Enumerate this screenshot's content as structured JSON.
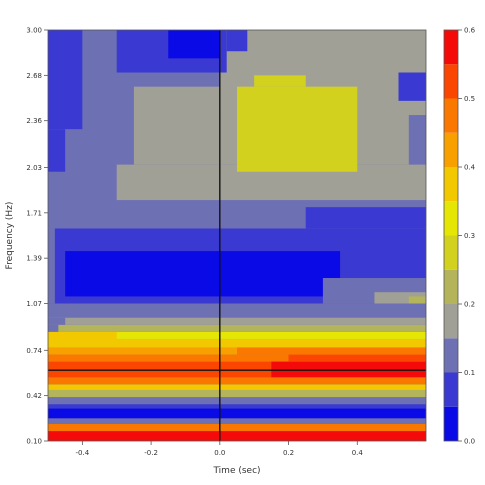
{
  "chart_data": {
    "type": "heatmap",
    "title": "",
    "xlabel": "Time (sec)",
    "ylabel": "Frequency (Hz)",
    "xlim": [
      -0.5,
      0.6
    ],
    "ylim": [
      0.1,
      3.0
    ],
    "x_ticks": [
      {
        "value": -0.4,
        "label": "-0.4"
      },
      {
        "value": -0.2,
        "label": "-0.2"
      },
      {
        "value": 0.0,
        "label": "0.0"
      },
      {
        "value": 0.2,
        "label": "0.2"
      },
      {
        "value": 0.4,
        "label": "0.4"
      }
    ],
    "y_ticks": [
      {
        "value": 0.1,
        "label": "0.10"
      },
      {
        "value": 0.42,
        "label": "0.42"
      },
      {
        "value": 0.74,
        "label": "0.74"
      },
      {
        "value": 1.07,
        "label": "1.07"
      },
      {
        "value": 1.39,
        "label": "1.39"
      },
      {
        "value": 1.71,
        "label": "1.71"
      },
      {
        "value": 2.03,
        "label": "2.03"
      },
      {
        "value": 2.36,
        "label": "2.36"
      },
      {
        "value": 2.68,
        "label": "2.68"
      },
      {
        "value": 3.0,
        "label": "3.00"
      }
    ],
    "colorbar": {
      "range": [
        0,
        0.6
      ],
      "ticks": [
        {
          "value": 0.0,
          "label": "0.0"
        },
        {
          "value": 0.1,
          "label": "0.1"
        },
        {
          "value": 0.2,
          "label": "0.2"
        },
        {
          "value": 0.3,
          "label": "0.3"
        },
        {
          "value": 0.4,
          "label": "0.4"
        },
        {
          "value": 0.5,
          "label": "0.5"
        },
        {
          "value": 0.6,
          "label": "0.6"
        }
      ],
      "levels": [
        {
          "min": 0.0,
          "max": 0.05,
          "color": "#0a0ae6"
        },
        {
          "min": 0.05,
          "max": 0.1,
          "color": "#3a3ad2"
        },
        {
          "min": 0.1,
          "max": 0.15,
          "color": "#6e70b4"
        },
        {
          "min": 0.15,
          "max": 0.2,
          "color": "#a0a096"
        },
        {
          "min": 0.2,
          "max": 0.25,
          "color": "#b4b45a"
        },
        {
          "min": 0.25,
          "max": 0.3,
          "color": "#d2d21e"
        },
        {
          "min": 0.3,
          "max": 0.35,
          "color": "#e6e605"
        },
        {
          "min": 0.35,
          "max": 0.4,
          "color": "#f2c800"
        },
        {
          "min": 0.4,
          "max": 0.45,
          "color": "#f7a000"
        },
        {
          "min": 0.45,
          "max": 0.5,
          "color": "#fa7800"
        },
        {
          "min": 0.5,
          "max": 0.55,
          "color": "#fa4600"
        },
        {
          "min": 0.55,
          "max": 0.6,
          "color": "#f50a0a"
        }
      ]
    },
    "reference_lines": {
      "vertical_time": 0.0,
      "horizontal_frequency": 0.6
    },
    "regions": [
      {
        "t0": -0.5,
        "t1": 0.6,
        "f0": 0.1,
        "f1": 3.0,
        "value": 0.12
      },
      {
        "t0": -0.5,
        "t1": 0.6,
        "f0": 0.1,
        "f1": 0.17,
        "value": 0.58
      },
      {
        "t0": -0.5,
        "t1": 0.6,
        "f0": 0.17,
        "f1": 0.22,
        "value": 0.47
      },
      {
        "t0": -0.5,
        "t1": 0.6,
        "f0": 0.22,
        "f1": 0.26,
        "value": 0.12
      },
      {
        "t0": -0.5,
        "t1": 0.6,
        "f0": 0.26,
        "f1": 0.33,
        "value": 0.04
      },
      {
        "t0": -0.5,
        "t1": 0.6,
        "f0": 0.33,
        "f1": 0.36,
        "value": 0.07
      },
      {
        "t0": -0.5,
        "t1": 0.6,
        "f0": 0.36,
        "f1": 0.41,
        "value": 0.13
      },
      {
        "t0": -0.5,
        "t1": 0.6,
        "f0": 0.41,
        "f1": 0.46,
        "value": 0.22
      },
      {
        "t0": -0.5,
        "t1": 0.6,
        "f0": 0.46,
        "f1": 0.5,
        "value": 0.37
      },
      {
        "t0": -0.5,
        "t1": 0.6,
        "f0": 0.5,
        "f1": 0.55,
        "value": 0.47
      },
      {
        "t0": -0.5,
        "t1": 0.6,
        "f0": 0.55,
        "f1": 0.66,
        "value": 0.53
      },
      {
        "t0": -0.5,
        "t1": 0.6,
        "f0": 0.66,
        "f1": 0.71,
        "value": 0.47
      },
      {
        "t0": -0.5,
        "t1": 0.6,
        "f0": 0.71,
        "f1": 0.76,
        "value": 0.42
      },
      {
        "t0": -0.5,
        "t1": 0.6,
        "f0": 0.76,
        "f1": 0.82,
        "value": 0.37
      },
      {
        "t0": -0.5,
        "t1": 0.6,
        "f0": 0.82,
        "f1": 0.87,
        "value": 0.32
      },
      {
        "t0": -0.5,
        "t1": 0.6,
        "f0": 0.87,
        "f1": 0.92,
        "value": 0.22
      },
      {
        "t0": -0.5,
        "t1": 0.6,
        "f0": 0.92,
        "f1": 0.97,
        "value": 0.16
      },
      {
        "t0": 0.15,
        "t1": 0.6,
        "f0": 0.55,
        "f1": 0.66,
        "value": 0.57
      },
      {
        "t0": 0.2,
        "t1": 0.6,
        "f0": 0.66,
        "f1": 0.71,
        "value": 0.53
      },
      {
        "t0": 0.05,
        "t1": 0.6,
        "f0": 0.71,
        "f1": 0.76,
        "value": 0.47
      },
      {
        "t0": -0.5,
        "t1": -0.3,
        "f0": 0.82,
        "f1": 0.87,
        "value": 0.37
      },
      {
        "t0": -0.5,
        "t1": -0.47,
        "f0": 0.87,
        "f1": 0.92,
        "value": 0.12
      },
      {
        "t0": -0.5,
        "t1": -0.45,
        "f0": 0.92,
        "f1": 0.97,
        "value": 0.12
      },
      {
        "t0": -0.5,
        "t1": 0.6,
        "f0": 1.07,
        "f1": 1.6,
        "value": 0.07
      },
      {
        "t0": -0.45,
        "t1": 0.35,
        "f0": 1.12,
        "f1": 1.44,
        "value": 0.03
      },
      {
        "t0": -0.5,
        "t1": -0.48,
        "f0": 1.07,
        "f1": 1.6,
        "value": 0.12
      },
      {
        "t0": 0.3,
        "t1": 0.6,
        "f0": 1.07,
        "f1": 1.25,
        "value": 0.12
      },
      {
        "t0": 0.45,
        "t1": 0.6,
        "f0": 1.07,
        "f1": 1.15,
        "value": 0.17
      },
      {
        "t0": 0.55,
        "t1": 0.6,
        "f0": 1.07,
        "f1": 1.12,
        "value": 0.22
      },
      {
        "t0": -0.5,
        "t1": 0.6,
        "f0": 1.6,
        "f1": 1.8,
        "value": 0.12
      },
      {
        "t0": 0.25,
        "t1": 0.6,
        "f0": 1.6,
        "f1": 1.75,
        "value": 0.07
      },
      {
        "t0": -0.3,
        "t1": 0.6,
        "f0": 1.8,
        "f1": 2.05,
        "value": 0.17
      },
      {
        "t0": -0.25,
        "t1": 0.55,
        "f0": 2.05,
        "f1": 2.6,
        "value": 0.17
      },
      {
        "t0": 0.0,
        "t1": 0.6,
        "f0": 2.4,
        "f1": 3.0,
        "value": 0.17
      },
      {
        "t0": 0.05,
        "t1": 0.4,
        "f0": 2.0,
        "f1": 2.6,
        "value": 0.28
      },
      {
        "t0": 0.1,
        "t1": 0.25,
        "f0": 2.6,
        "f1": 2.68,
        "value": 0.27
      },
      {
        "t0": -0.5,
        "t1": -0.4,
        "f0": 2.3,
        "f1": 3.0,
        "value": 0.07
      },
      {
        "t0": -0.5,
        "t1": -0.45,
        "f0": 2.0,
        "f1": 2.3,
        "value": 0.07
      },
      {
        "t0": -0.3,
        "t1": 0.02,
        "f0": 2.7,
        "f1": 3.0,
        "value": 0.07
      },
      {
        "t0": -0.15,
        "t1": 0.0,
        "f0": 2.8,
        "f1": 3.0,
        "value": 0.03
      },
      {
        "t0": 0.02,
        "t1": 0.08,
        "f0": 2.85,
        "f1": 3.0,
        "value": 0.07
      },
      {
        "t0": 0.52,
        "t1": 0.6,
        "f0": 2.5,
        "f1": 2.7,
        "value": 0.07
      }
    ]
  }
}
